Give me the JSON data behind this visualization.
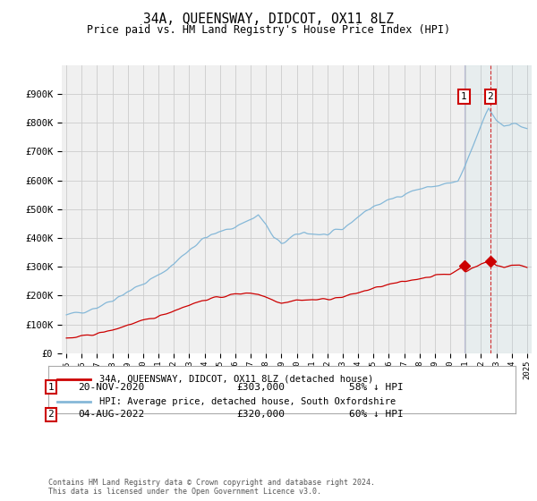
{
  "title": "34A, QUEENSWAY, DIDCOT, OX11 8LZ",
  "subtitle": "Price paid vs. HM Land Registry's House Price Index (HPI)",
  "hpi_label": "HPI: Average price, detached house, South Oxfordshire",
  "price_label": "34A, QUEENSWAY, DIDCOT, OX11 8LZ (detached house)",
  "footer": "Contains HM Land Registry data © Crown copyright and database right 2024.\nThis data is licensed under the Open Government Licence v3.0.",
  "annotation1": {
    "num": "1",
    "date": "20-NOV-2020",
    "price": "£303,000",
    "pct": "58% ↓ HPI",
    "year": 2020.9
  },
  "annotation2": {
    "num": "2",
    "date": "04-AUG-2022",
    "price": "£320,000",
    "pct": "60% ↓ HPI",
    "year": 2022.6
  },
  "ann1_price_y": 303000,
  "ann2_price_y": 320000,
  "hpi_color": "#85b8d8",
  "price_color": "#cc0000",
  "annotation_color": "#cc0000",
  "background_color": "#f0f0f0",
  "grid_color": "#cccccc",
  "ylim": [
    0,
    1000000
  ],
  "yticks": [
    0,
    100000,
    200000,
    300000,
    400000,
    500000,
    600000,
    700000,
    800000,
    900000
  ],
  "ytick_labels": [
    "£0",
    "£100K",
    "£200K",
    "£300K",
    "£400K",
    "£500K",
    "£600K",
    "£700K",
    "£800K",
    "£900K"
  ],
  "xtick_years": [
    1995,
    1996,
    1997,
    1998,
    1999,
    2000,
    2001,
    2002,
    2003,
    2004,
    2005,
    2006,
    2007,
    2008,
    2009,
    2010,
    2011,
    2012,
    2013,
    2014,
    2015,
    2016,
    2017,
    2018,
    2019,
    2020,
    2021,
    2022,
    2023,
    2024,
    2025
  ],
  "xlim_left": 1994.7,
  "xlim_right": 2025.3,
  "hpi_anchor": [
    [
      1995.0,
      130000
    ],
    [
      1996.0,
      145000
    ],
    [
      1997.0,
      160000
    ],
    [
      1998.0,
      185000
    ],
    [
      1999.0,
      215000
    ],
    [
      2000.0,
      240000
    ],
    [
      2001.0,
      270000
    ],
    [
      2002.0,
      310000
    ],
    [
      2003.0,
      360000
    ],
    [
      2004.0,
      400000
    ],
    [
      2005.0,
      420000
    ],
    [
      2006.0,
      440000
    ],
    [
      2007.0,
      465000
    ],
    [
      2007.5,
      480000
    ],
    [
      2008.0,
      445000
    ],
    [
      2008.5,
      400000
    ],
    [
      2009.0,
      380000
    ],
    [
      2009.5,
      395000
    ],
    [
      2010.0,
      410000
    ],
    [
      2010.5,
      420000
    ],
    [
      2011.0,
      415000
    ],
    [
      2012.0,
      410000
    ],
    [
      2013.0,
      430000
    ],
    [
      2014.0,
      475000
    ],
    [
      2015.0,
      510000
    ],
    [
      2016.0,
      530000
    ],
    [
      2017.0,
      555000
    ],
    [
      2018.0,
      570000
    ],
    [
      2019.0,
      580000
    ],
    [
      2020.0,
      590000
    ],
    [
      2020.5,
      595000
    ],
    [
      2021.0,
      650000
    ],
    [
      2021.5,
      720000
    ],
    [
      2022.0,
      790000
    ],
    [
      2022.5,
      850000
    ],
    [
      2023.0,
      810000
    ],
    [
      2023.5,
      790000
    ],
    [
      2024.0,
      800000
    ],
    [
      2024.5,
      790000
    ],
    [
      2025.0,
      780000
    ]
  ],
  "price_anchor": [
    [
      1995.0,
      50000
    ],
    [
      1996.0,
      58000
    ],
    [
      1997.0,
      68000
    ],
    [
      1998.0,
      80000
    ],
    [
      1999.0,
      98000
    ],
    [
      2000.0,
      112000
    ],
    [
      2001.0,
      128000
    ],
    [
      2002.0,
      148000
    ],
    [
      2003.0,
      168000
    ],
    [
      2004.0,
      185000
    ],
    [
      2005.0,
      195000
    ],
    [
      2006.0,
      205000
    ],
    [
      2007.0,
      210000
    ],
    [
      2007.5,
      205000
    ],
    [
      2008.0,
      195000
    ],
    [
      2008.5,
      185000
    ],
    [
      2009.0,
      175000
    ],
    [
      2009.5,
      180000
    ],
    [
      2010.0,
      185000
    ],
    [
      2011.0,
      185000
    ],
    [
      2012.0,
      188000
    ],
    [
      2013.0,
      195000
    ],
    [
      2014.0,
      210000
    ],
    [
      2015.0,
      225000
    ],
    [
      2016.0,
      238000
    ],
    [
      2017.0,
      248000
    ],
    [
      2018.0,
      260000
    ],
    [
      2019.0,
      270000
    ],
    [
      2020.0,
      275000
    ],
    [
      2020.9,
      303000
    ],
    [
      2021.0,
      285000
    ],
    [
      2021.5,
      295000
    ],
    [
      2022.0,
      310000
    ],
    [
      2022.6,
      320000
    ],
    [
      2023.0,
      305000
    ],
    [
      2023.5,
      300000
    ],
    [
      2024.0,
      305000
    ],
    [
      2024.5,
      305000
    ],
    [
      2025.0,
      300000
    ]
  ]
}
